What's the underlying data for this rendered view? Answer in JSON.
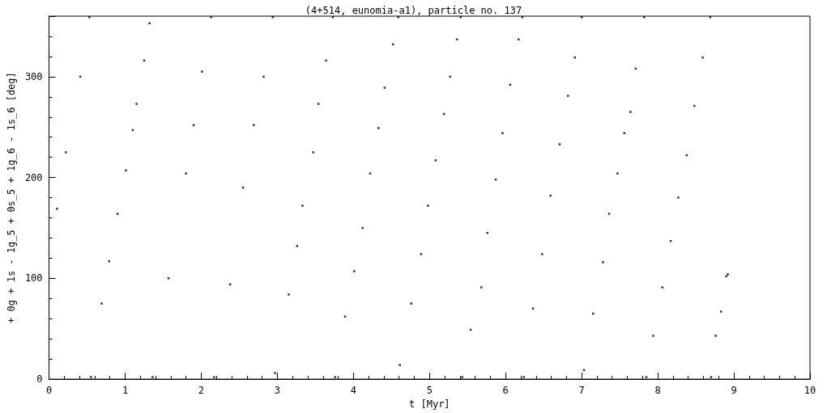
{
  "chart_data": {
    "type": "scatter",
    "title": "(4+514, eunomia-a1), particle no. 137",
    "xlabel": "t [Myr]",
    "ylabel": "+ 0g + 1s - 1g_5 + 0s_5 + 1g_6 - 1s_6 [deg]",
    "x": [
      0.105,
      0.22,
      0.41,
      0.53,
      0.55,
      0.69,
      0.79,
      0.9,
      1.01,
      1.1,
      1.15,
      1.25,
      1.32,
      1.36,
      1.57,
      1.8,
      1.9,
      2.01,
      2.13,
      2.17,
      2.38,
      2.55,
      2.69,
      2.82,
      2.94,
      2.97,
      3.15,
      3.26,
      3.33,
      3.47,
      3.54,
      3.64,
      3.73,
      3.76,
      3.89,
      4.01,
      4.12,
      4.22,
      4.33,
      4.41,
      4.52,
      4.59,
      4.61,
      4.76,
      4.89,
      4.98,
      5.08,
      5.19,
      5.27,
      5.36,
      5.41,
      5.43,
      5.54,
      5.68,
      5.76,
      5.87,
      5.96,
      6.06,
      6.17,
      6.22,
      6.24,
      6.36,
      6.48,
      6.59,
      6.71,
      6.82,
      6.91,
      7.0,
      7.03,
      7.15,
      7.28,
      7.36,
      7.47,
      7.56,
      7.64,
      7.71,
      7.82,
      7.85,
      7.94,
      8.06,
      8.17,
      8.27,
      8.38,
      8.48,
      8.59,
      8.69,
      8.7,
      8.76,
      8.83,
      8.9,
      8.92
    ],
    "values": [
      169,
      225,
      300,
      359,
      2,
      75,
      117,
      164,
      207,
      247,
      273,
      316,
      353,
      2,
      100,
      204,
      252,
      305,
      359,
      2,
      94,
      190,
      252,
      300,
      359,
      6,
      84,
      132,
      172,
      225,
      273,
      316,
      359,
      2,
      62,
      107,
      150,
      204,
      249,
      289,
      332,
      359,
      14,
      75,
      124,
      172,
      217,
      263,
      300,
      337,
      359,
      2,
      49,
      91,
      145,
      198,
      244,
      292,
      337,
      359,
      2,
      70,
      124,
      182,
      233,
      281,
      319,
      359,
      9,
      65,
      116,
      164,
      204,
      244,
      265,
      308,
      359,
      2,
      43,
      91,
      137,
      180,
      222,
      271,
      319,
      359,
      2,
      43,
      67,
      102,
      104
    ],
    "color": "#000000",
    "marker": "square",
    "xlim": [
      0,
      10
    ],
    "xticks": [
      0,
      1,
      2,
      3,
      4,
      5,
      6,
      7,
      8,
      9,
      10
    ],
    "ylim": [
      0,
      360
    ],
    "yticks": [
      0,
      100,
      200,
      300
    ],
    "grid": false
  }
}
